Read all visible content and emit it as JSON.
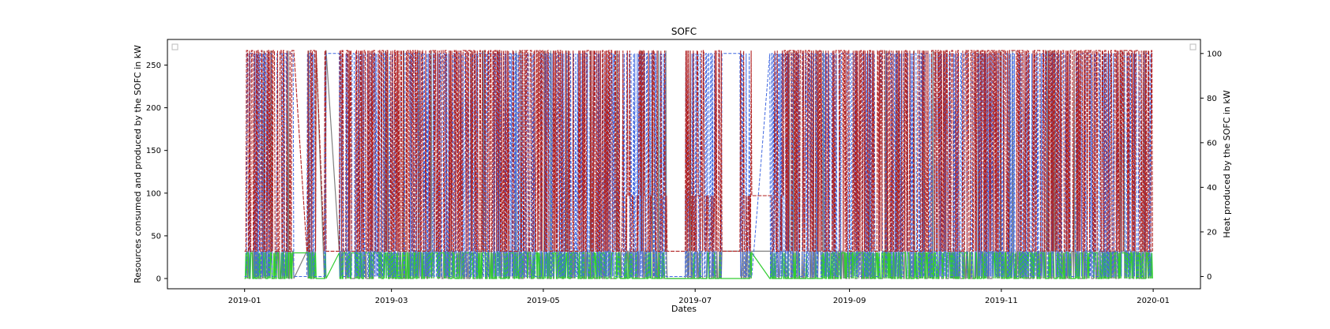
{
  "chart_data": {
    "type": "line",
    "title": "SOFC",
    "xlabel": "Dates",
    "ylabel_left": "Resources consumed and produced by the SOFC in kW",
    "ylabel_right": "Heat produced by the SOFC in kW",
    "x_range": [
      "2018-12-01",
      "2020-01-20"
    ],
    "x_ticks": [
      "2019-01",
      "2019-03",
      "2019-05",
      "2019-07",
      "2019-09",
      "2019-11",
      "2020-01"
    ],
    "ylim_left": [
      -12,
      280
    ],
    "yticks_left": [
      0,
      50,
      100,
      150,
      200,
      250
    ],
    "ylim_right": [
      -5.5,
      106.3
    ],
    "yticks_right": [
      0,
      20,
      40,
      60,
      80,
      100
    ],
    "grid": false,
    "legend": {
      "left": "top-left",
      "right": "top-right",
      "entries": []
    },
    "data_start": "2019-01-01",
    "data_end": "2019-12-31",
    "series": [
      {
        "axis": "left",
        "color": "#b22222",
        "style": "dashed",
        "min": 30,
        "max": 267,
        "typical_high": 267,
        "typical_low": 32
      },
      {
        "axis": "left",
        "color": "#808080",
        "style": "solid",
        "min": 0,
        "max": 267,
        "typical_high": 32,
        "typical_low": 0
      },
      {
        "axis": "left",
        "color": "#32cd32",
        "style": "solid",
        "min": 0,
        "max": 30,
        "typical_high": 30,
        "typical_low": 0
      },
      {
        "axis": "right",
        "color": "#4169e1",
        "style": "dashed",
        "min": 0,
        "max": 100,
        "typical_high": 100,
        "typical_low": 0
      }
    ],
    "gaps": [
      {
        "start": "2019-01-21",
        "end": "2019-01-25"
      },
      {
        "start": "2019-01-30",
        "end": "2019-02-01"
      },
      {
        "start": "2019-02-03",
        "end": "2019-02-07"
      },
      {
        "start": "2019-06-20",
        "end": "2019-06-26"
      },
      {
        "start": "2019-07-12",
        "end": "2019-07-18"
      },
      {
        "start": "2019-07-24",
        "end": "2019-07-30"
      }
    ],
    "partial_level_periods": [
      {
        "start": "2019-06-01",
        "end": "2019-08-05",
        "red_max": 97
      }
    ],
    "mostly_gray_periods": [
      {
        "start": "2019-06-01",
        "end": "2019-08-20"
      }
    ]
  }
}
